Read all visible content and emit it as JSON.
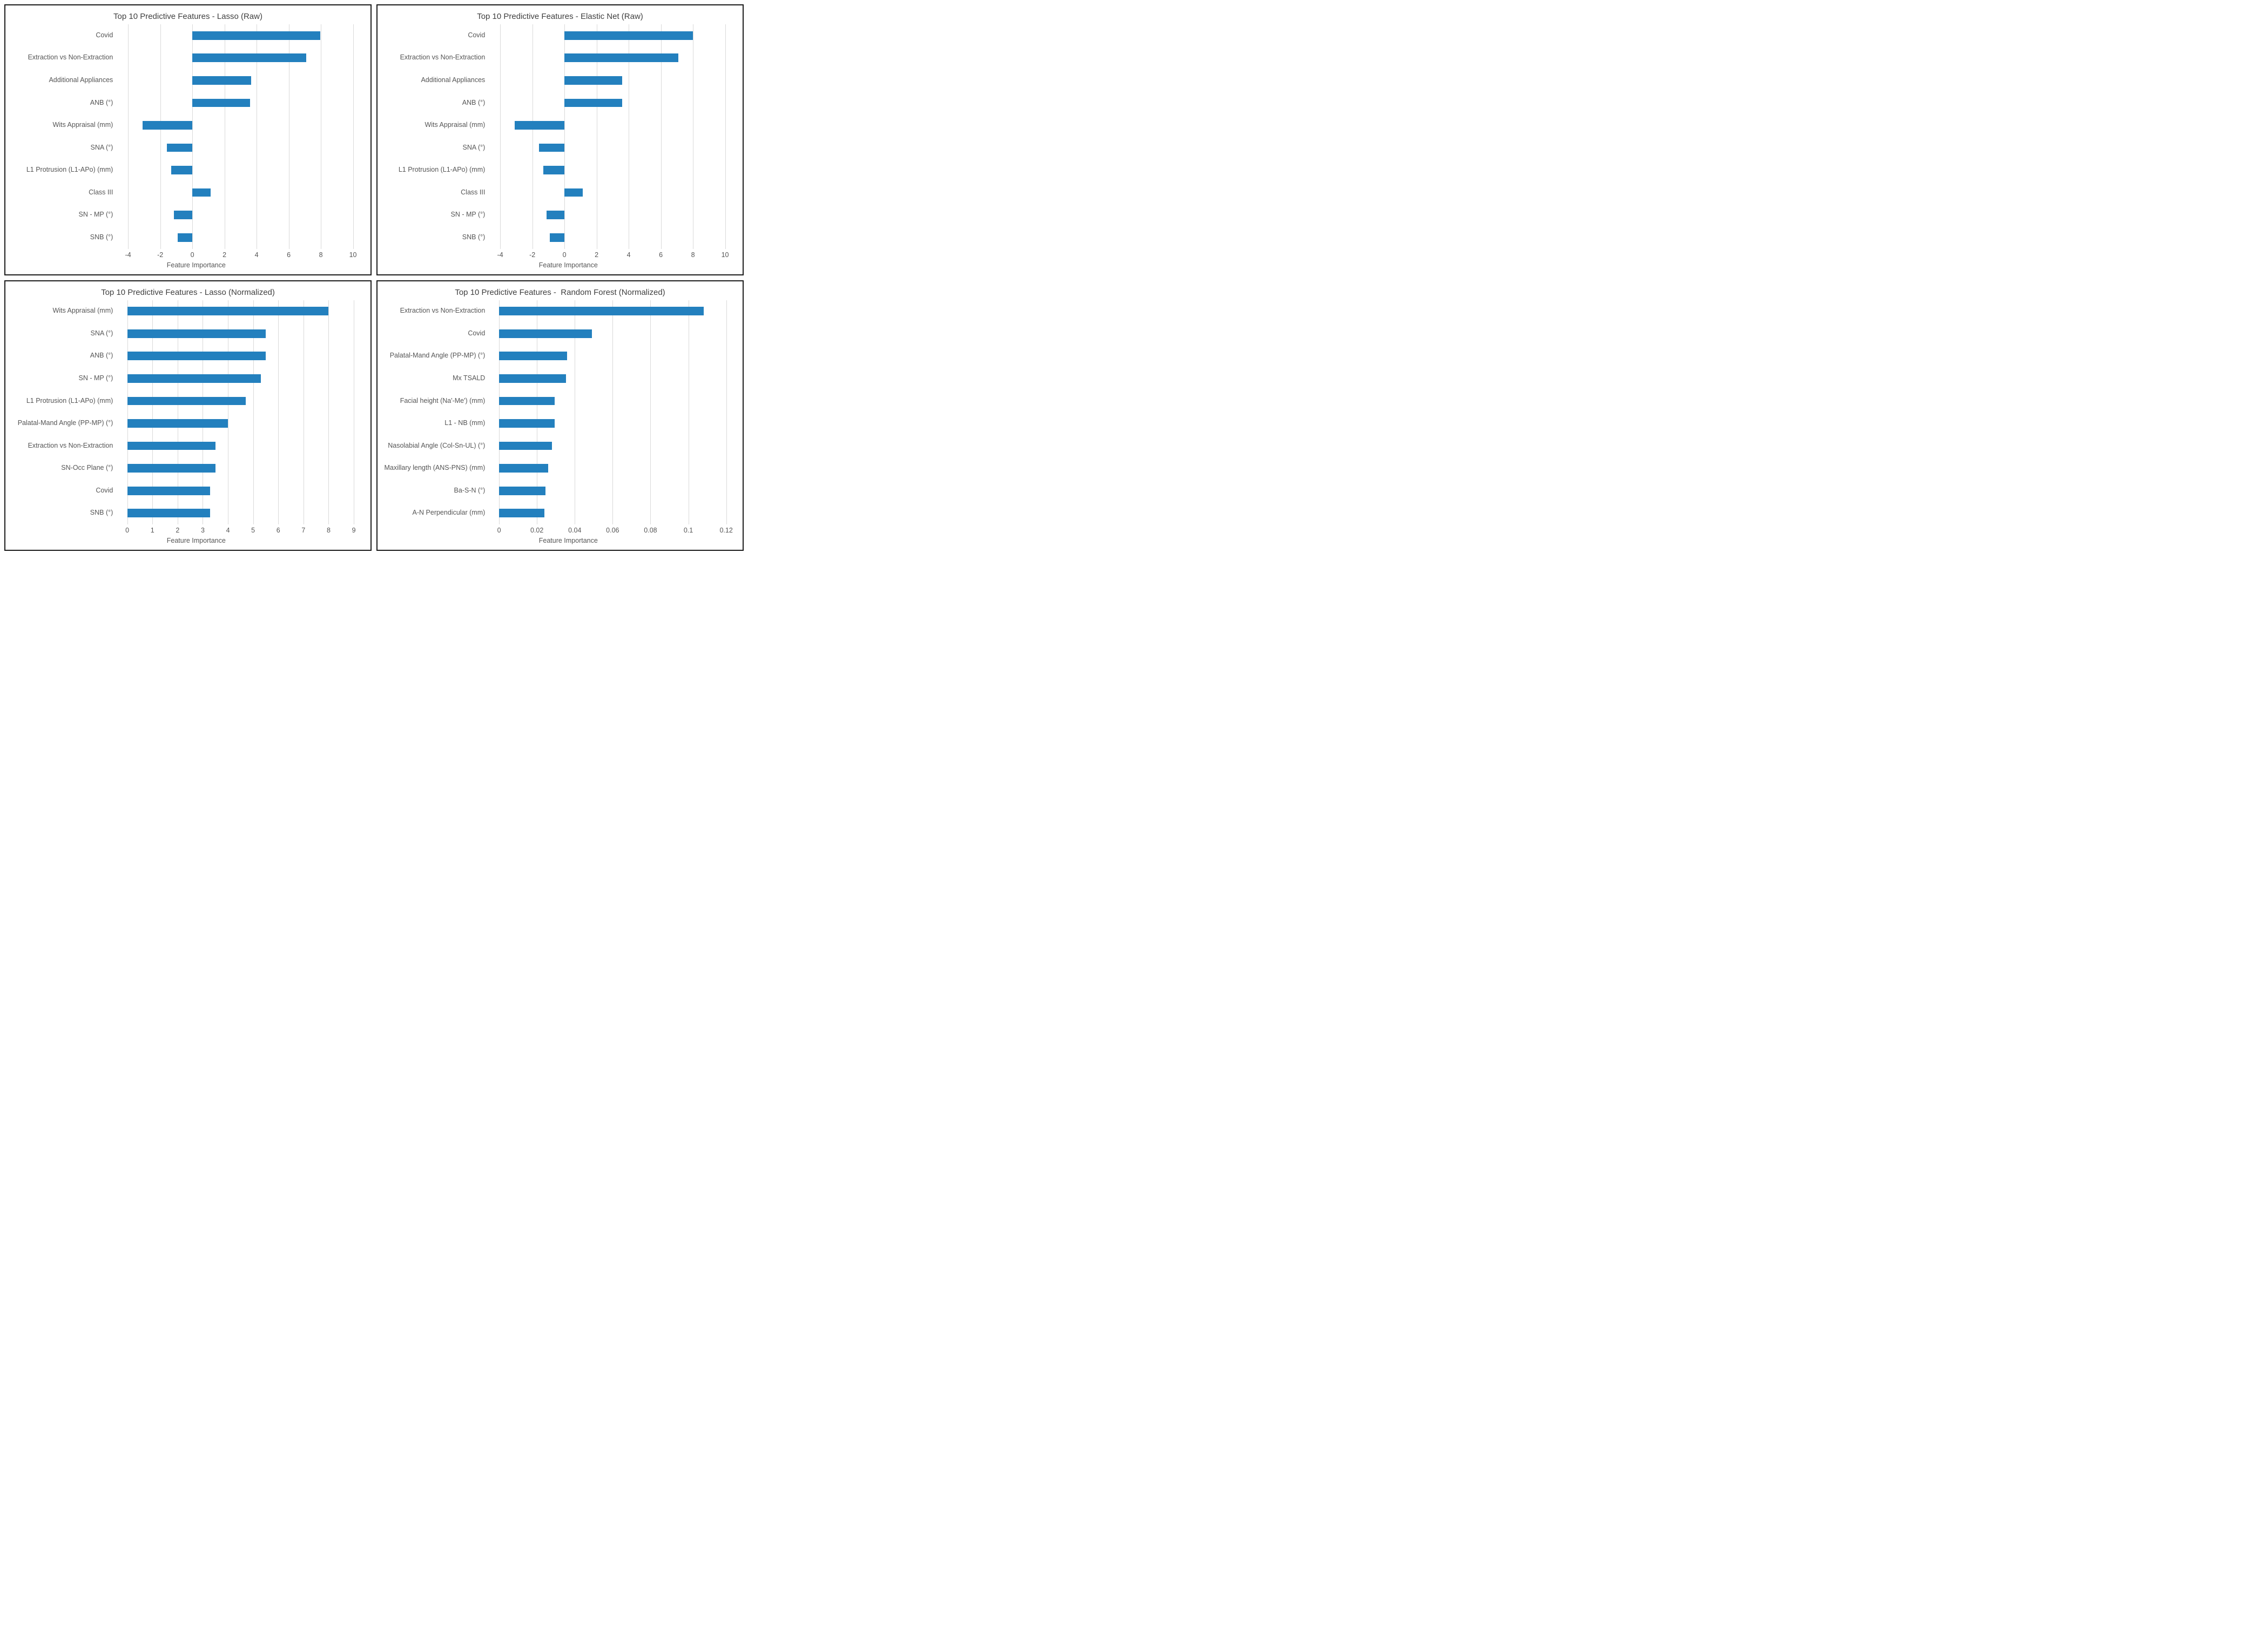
{
  "figure": {
    "background": "#ffffff",
    "bar_color": "#2380be",
    "grid_color": "#d9d9d9",
    "text_color": "#555555",
    "title_color": "#3f3f3f",
    "border_color": "#1c1c1c"
  },
  "chart_data": [
    {
      "type": "bar",
      "orientation": "horizontal",
      "title": "Top 10 Predictive Features - Lasso (Raw)",
      "xlabel": "Feature Importance",
      "categories": [
        "Covid",
        "Extraction vs Non-Extraction",
        "Additional Appliances",
        "ANB (°)",
        "Wits Appraisal (mm)",
        "SNA (°)",
        "L1 Protrusion (L1-APo) (mm)",
        "Class III",
        "SN - MP (°)",
        "SNB (°)"
      ],
      "values": [
        7.95,
        7.1,
        3.65,
        3.6,
        -3.1,
        -1.6,
        -1.3,
        1.15,
        -1.15,
        -0.9
      ],
      "xlim": [
        -4.6,
        10.6
      ],
      "tick_values": [
        -4,
        -2,
        0,
        2,
        4,
        6,
        8,
        10
      ],
      "tick_labels": [
        "-4",
        "-2",
        "0",
        "2",
        "4",
        "6",
        "8",
        "10"
      ],
      "grid": true,
      "legend": "none"
    },
    {
      "type": "bar",
      "orientation": "horizontal",
      "title": "Top 10 Predictive Features - Elastic Net (Raw)",
      "xlabel": "Feature Importance",
      "categories": [
        "Covid",
        "Extraction vs Non-Extraction",
        "Additional Appliances",
        "ANB (°)",
        "Wits Appraisal (mm)",
        "SNA (°)",
        "L1 Protrusion (L1-APo) (mm)",
        "Class III",
        "SN - MP (°)",
        "SNB (°)"
      ],
      "values": [
        8.0,
        7.1,
        3.6,
        3.6,
        -3.1,
        -1.6,
        -1.3,
        1.15,
        -1.1,
        -0.9
      ],
      "xlim": [
        -4.6,
        10.6
      ],
      "tick_values": [
        -4,
        -2,
        0,
        2,
        4,
        6,
        8,
        10
      ],
      "tick_labels": [
        "-4",
        "-2",
        "0",
        "2",
        "4",
        "6",
        "8",
        "10"
      ],
      "grid": true,
      "legend": "none"
    },
    {
      "type": "bar",
      "orientation": "horizontal",
      "title": "Top 10 Predictive Features - Lasso (Normalized)",
      "xlabel": "Feature Importance",
      "categories": [
        "Wits Appraisal (mm)",
        "SNA (°)",
        "ANB (°)",
        "SN - MP (°)",
        "L1 Protrusion (L1-APo) (mm)",
        "Palatal-Mand Angle (PP-MP) (°)",
        "Extraction vs Non-Extraction",
        "SN-Occ Plane (°)",
        "Covid",
        "SNB (°)"
      ],
      "values": [
        8.0,
        5.5,
        5.5,
        5.3,
        4.7,
        4.0,
        3.5,
        3.5,
        3.3,
        3.3
      ],
      "xlim": [
        -0.35,
        9.35
      ],
      "tick_values": [
        0,
        1,
        2,
        3,
        4,
        5,
        6,
        7,
        8,
        9
      ],
      "tick_labels": [
        "0",
        "1",
        "2",
        "3",
        "4",
        "5",
        "6",
        "7",
        "8",
        "9"
      ],
      "grid": true,
      "legend": "none"
    },
    {
      "type": "bar",
      "orientation": "horizontal",
      "title": "Top 10 Predictive Features -  Random Forest (Normalized)",
      "xlabel": "Feature Importance",
      "categories": [
        "Extraction vs Non-Extraction",
        "Covid",
        "Palatal-Mand Angle (PP-MP) (°)",
        "Mx TSALD",
        "Facial height (Na'-Me') (mm)",
        "L1 - NB (mm)",
        "Nasolabial Angle (Col-Sn-UL) (°)",
        "Maxillary length (ANS-PNS) (mm)",
        "Ba-S-N (°)",
        "A-N Perpendicular (mm)"
      ],
      "values": [
        0.108,
        0.049,
        0.036,
        0.0355,
        0.0295,
        0.0295,
        0.028,
        0.026,
        0.0245,
        0.024
      ],
      "xlim": [
        -0.0045,
        0.1245
      ],
      "tick_values": [
        0,
        0.02,
        0.04,
        0.06,
        0.08,
        0.1,
        0.12
      ],
      "tick_labels": [
        "0",
        "0.02",
        "0.04",
        "0.06",
        "0.08",
        "0.1",
        "0.12"
      ],
      "grid": true,
      "legend": "none"
    }
  ]
}
